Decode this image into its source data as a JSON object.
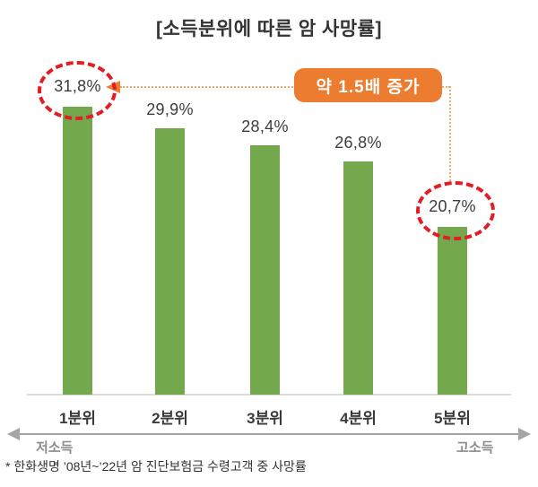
{
  "title": "[소득분위에 따른 암 사망률]",
  "annotation_badge": "약 1.5배 증가",
  "axis_notes": {
    "left": "저소득",
    "right": "고소득"
  },
  "footnote": "* 한화생명 ’08년~’22년 암 진단보험금 수령고객 중 사망률",
  "chart_data": {
    "type": "bar",
    "title": "[소득분위에 따른 암 사망률]",
    "categories": [
      "1분위",
      "2분위",
      "3분위",
      "4분위",
      "5분위"
    ],
    "values": [
      31.8,
      29.9,
      28.4,
      26.8,
      20.7
    ],
    "value_labels": [
      "31,8%",
      "29,9%",
      "28,4%",
      "26,8%",
      "20,7%"
    ],
    "highlighted_categories": [
      "1분위",
      "5분위"
    ],
    "annotation": "약 1.5배 증가",
    "xlabel_left": "저소득",
    "xlabel_right": "고소득",
    "ylim": [
      0,
      35
    ],
    "grid": false,
    "legend": false,
    "bar_color": "#73A94C"
  },
  "colors": {
    "bar_green": "#73A94C",
    "badge_orange": "#EC7C2F",
    "highlight_red": "#E01E25",
    "connector_orange": "#F1A767",
    "axis_gray": "#DCDCDC",
    "arrow_gray": "#A5A5A5",
    "text_dark": "#333333",
    "text_gray": "#8C8C8C"
  }
}
